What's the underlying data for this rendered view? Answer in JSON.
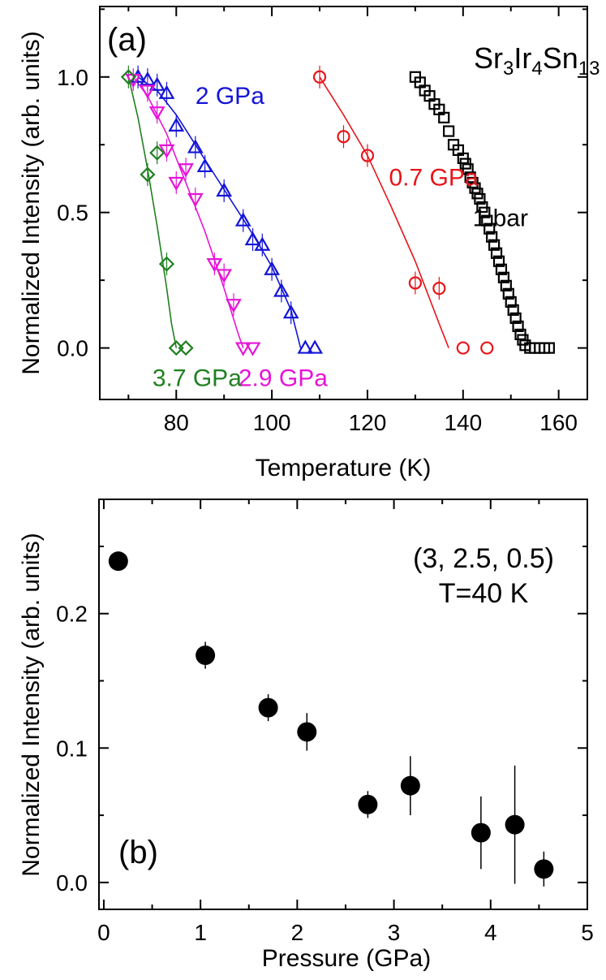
{
  "chart_data": [
    {
      "type": "scatter",
      "panel_label": "(a)",
      "title_parts": [
        "Sr",
        "3",
        "Ir",
        "4",
        "Sn",
        "13"
      ],
      "xlabel": "Temperature (K)",
      "ylabel": "Normalized Intensity (arb. units)",
      "xlim": [
        64,
        166
      ],
      "ylim": [
        -0.19,
        1.26
      ],
      "xticks": [
        80,
        100,
        120,
        140,
        160
      ],
      "xtick_labels": [
        "80",
        "100",
        "120",
        "140",
        "160"
      ],
      "yticks": [
        0.0,
        0.5,
        1.0
      ],
      "ytick_labels": [
        "0.0",
        "0.5",
        "1.0"
      ],
      "grid": false,
      "series": [
        {
          "label": "1 bar",
          "color": "#000000",
          "marker": "square",
          "label_at": [
            142,
            0.45
          ],
          "x": [
            130,
            131,
            132,
            133,
            134,
            135,
            136,
            137,
            138,
            139,
            140,
            140.5,
            141,
            141.5,
            142,
            142.5,
            143,
            143.5,
            144,
            144.5,
            145,
            145.5,
            146,
            146.5,
            147,
            147.5,
            148,
            148.5,
            149,
            149.5,
            150,
            150.5,
            151,
            151.5,
            152,
            152.5,
            153,
            154,
            155,
            156,
            157,
            158
          ],
          "y": [
            1.0,
            0.98,
            0.95,
            0.93,
            0.9,
            0.88,
            0.85,
            0.8,
            0.75,
            0.73,
            0.7,
            0.68,
            0.66,
            0.63,
            0.61,
            0.59,
            0.57,
            0.55,
            0.52,
            0.5,
            0.47,
            0.44,
            0.41,
            0.38,
            0.35,
            0.32,
            0.29,
            0.26,
            0.23,
            0.2,
            0.17,
            0.14,
            0.11,
            0.08,
            0.05,
            0.03,
            0.01,
            0.0,
            0.0,
            0.0,
            0.0,
            0.0
          ]
        },
        {
          "label": "0.7 GPa",
          "color": "#e8141a",
          "marker": "circle",
          "label_at": [
            124.5,
            0.6
          ],
          "x": [
            110,
            115,
            120,
            130,
            135,
            140,
            145
          ],
          "y": [
            1.0,
            0.78,
            0.71,
            0.24,
            0.22,
            0.0,
            0.0
          ],
          "fit": {
            "x": [
              110,
              115,
              120,
              125,
              130,
              135,
              137
            ],
            "y": [
              1.0,
              0.86,
              0.71,
              0.52,
              0.32,
              0.09,
              0.0
            ]
          }
        },
        {
          "label": "2 GPa",
          "color": "#1414d8",
          "marker": "triangle-up",
          "label_at": [
            84,
            0.9
          ],
          "x": [
            72,
            74,
            76,
            78,
            80,
            84,
            86,
            90,
            94,
            96,
            98,
            100,
            102,
            104,
            107,
            109
          ],
          "y": [
            1.0,
            0.99,
            0.97,
            0.94,
            0.82,
            0.74,
            0.67,
            0.58,
            0.47,
            0.4,
            0.38,
            0.29,
            0.21,
            0.13,
            0.0,
            0.0
          ],
          "fit": {
            "x": [
              72,
              76,
              80,
              84,
              88,
              92,
              96,
              100,
              104,
              106
            ],
            "y": [
              1.0,
              0.95,
              0.86,
              0.75,
              0.64,
              0.53,
              0.42,
              0.3,
              0.14,
              0.0
            ]
          }
        },
        {
          "label": "2.9 GPa",
          "color": "#e614d8",
          "marker": "triangle-down",
          "label_at": [
            93,
            -0.14
          ],
          "x": [
            71,
            74,
            76,
            78,
            80,
            82,
            84,
            88,
            90,
            92,
            94,
            96
          ],
          "y": [
            0.99,
            0.95,
            0.87,
            0.73,
            0.61,
            0.66,
            0.55,
            0.31,
            0.27,
            0.16,
            0.0,
            0.0
          ],
          "fit": {
            "x": [
              71,
              74,
              78,
              82,
              86,
              90,
              93,
              94
            ],
            "y": [
              1.0,
              0.93,
              0.79,
              0.61,
              0.43,
              0.22,
              0.05,
              0.0
            ]
          }
        },
        {
          "label": "3.7 GPa",
          "color": "#208020",
          "marker": "diamond",
          "label_at": [
            75,
            -0.14
          ],
          "x": [
            70,
            74,
            76,
            78,
            80,
            82
          ],
          "y": [
            1.0,
            0.64,
            0.72,
            0.31,
            0.0,
            0.0
          ],
          "fit": {
            "x": [
              70,
              72,
              74,
              76,
              78,
              79,
              80
            ],
            "y": [
              1.0,
              0.85,
              0.66,
              0.45,
              0.22,
              0.09,
              0.0
            ]
          }
        }
      ]
    },
    {
      "type": "scatter",
      "panel_label": "(b)",
      "annotation_line1": "(3, 2.5, 0.5)",
      "annotation_line2": "T=40 K",
      "xlabel": "Pressure (GPa)",
      "ylabel": "Normalized Intensity (arb. units)",
      "xlim": [
        -0.05,
        5.0
      ],
      "ylim": [
        -0.02,
        0.285
      ],
      "xticks": [
        0,
        1,
        2,
        3,
        4,
        5
      ],
      "xtick_labels": [
        "0",
        "1",
        "2",
        "3",
        "4",
        "5"
      ],
      "yticks": [
        0.0,
        0.1,
        0.2
      ],
      "ytick_labels": [
        "0.0",
        "0.1",
        "0.2"
      ],
      "grid": false,
      "series": [
        {
          "color": "#000000",
          "marker": "filled-circle",
          "x": [
            0.15,
            1.05,
            1.7,
            2.1,
            2.73,
            3.17,
            3.9,
            4.25,
            4.55
          ],
          "y": [
            0.239,
            0.169,
            0.13,
            0.112,
            0.058,
            0.072,
            0.037,
            0.043,
            0.01
          ],
          "yerr": [
            0.003,
            0.01,
            0.01,
            0.014,
            0.01,
            0.022,
            0.027,
            0.044,
            0.013
          ]
        }
      ]
    }
  ]
}
